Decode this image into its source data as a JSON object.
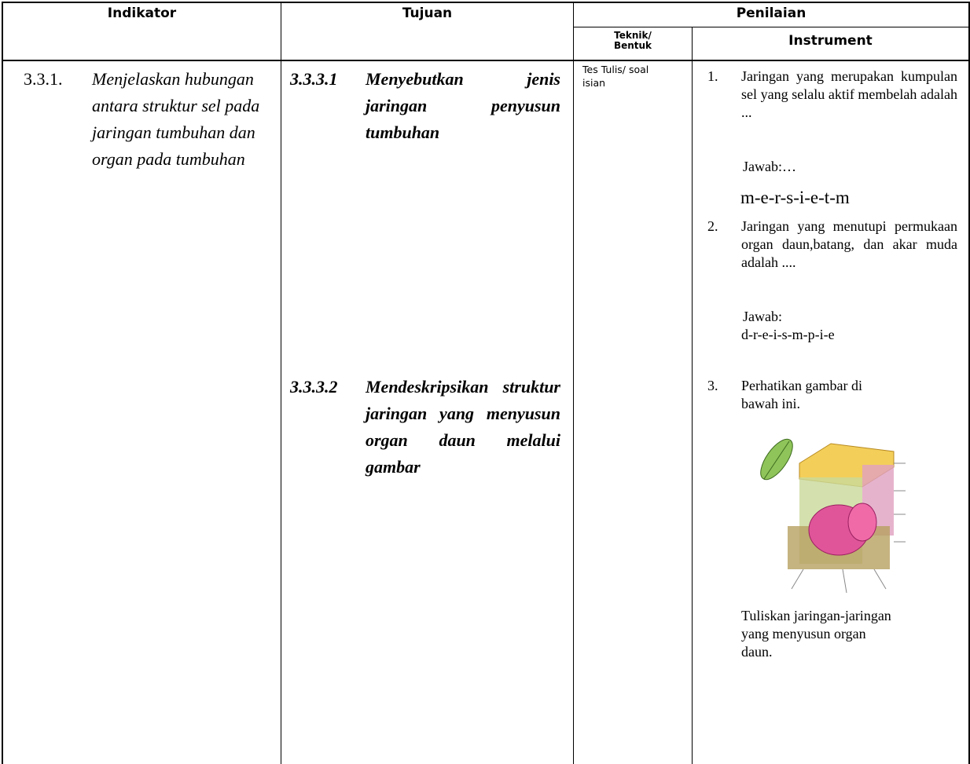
{
  "table": {
    "headers": {
      "indikator": "Indikator",
      "tujuan": "Tujuan",
      "penilaian": "Penilaian",
      "teknik": "Teknik/ Bentuk",
      "instrument": "Instrument"
    },
    "indikator": {
      "number": "3.3.1.",
      "text": "Menjelaskan hubungan antara struktur sel pada jaringan tumbuhan dan organ pada tumbuhan"
    },
    "tujuan": [
      {
        "number": "3.3.3.1",
        "text": "Menyebutkan jenis jaringan penyusun tumbuhan"
      },
      {
        "number": "3.3.3.2",
        "text": "Mendeskripsikan struktur jaringan yang menyusun organ daun melalui gambar"
      }
    ],
    "teknik": "Tes Tulis/ soal isian",
    "questions": [
      {
        "number": "1.",
        "text": "Jaringan yang merupakan kumpulan sel yang selalu aktif membelah adalah ...",
        "answer_label": "Jawab:…",
        "answer": "m-e-r-s-i-e-t-m"
      },
      {
        "number": "2.",
        "text": "Jaringan yang menutupi permukaan organ daun,batang, dan akar muda adalah ....",
        "answer_label": "Jawab:",
        "answer": "d-r-e-i-s-m-p-i-e"
      },
      {
        "number": "3.",
        "text": "Perhatikan gambar di bawah ini.",
        "after": "Tuliskan jaringan-jaringan yang menyusun organ daun."
      }
    ]
  }
}
